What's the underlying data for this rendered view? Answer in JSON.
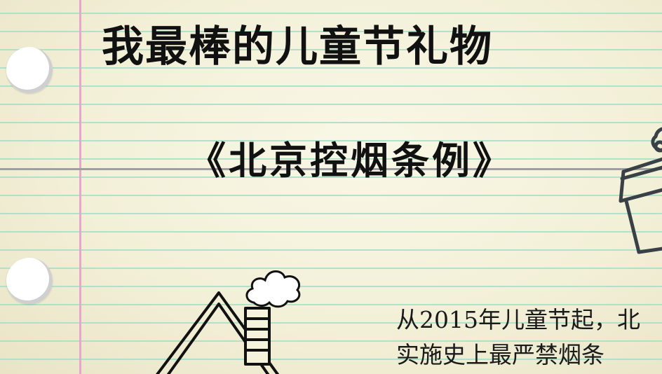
{
  "title": "我最棒的儿童节礼物",
  "subtitle": "《北京控烟条例》",
  "body": {
    "line1": "从2015年儿童节起，北",
    "line2": "实施史上最严禁烟条"
  },
  "icons": {
    "house": "house-icon",
    "chimney_smoke": "smoke-icon",
    "plant_pot": "plant-pot-icon"
  },
  "colors": {
    "paper": "#f6f3dd",
    "rule_line": "#a9dfc8",
    "margin_line": "#e7a6cc",
    "ink": "#111111"
  }
}
